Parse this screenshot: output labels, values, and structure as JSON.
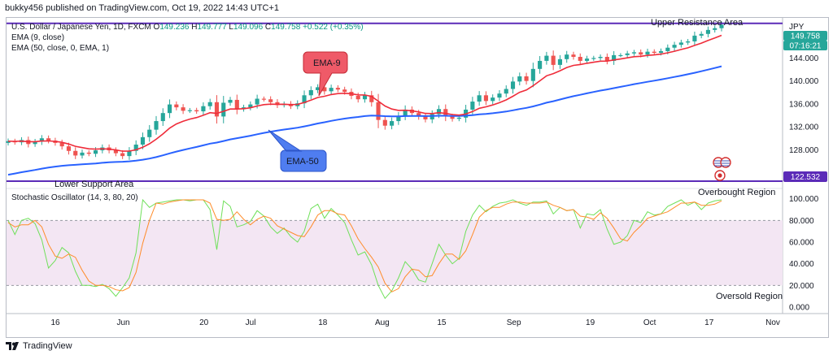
{
  "header": {
    "publisher_text": "bukky456 published on TradingView.com, Oct 19, 2022 14:43 UTC+1"
  },
  "footer": {
    "brand": "TradingView",
    "logo_icon": "tradingview-logo-icon"
  },
  "colors": {
    "up_candle": "#26a69a",
    "down_candle": "#ef5350",
    "ema9": "#ef2c3a",
    "ema50": "#2962ff",
    "level_line": "#5b2bb8",
    "stoch_k": "#6fe05a",
    "stoch_d": "#ff8c2a",
    "band_fill": "#f3e6f3",
    "ema9_callout_bg": "#ef5a68",
    "ema50_callout_bg": "#4f7df0",
    "axis_text": "#131722"
  },
  "chart_data": [
    {
      "type": "candlestick",
      "symbol_line": "U.S. Dollar / Japanese Yen, 1D, FXCM",
      "ohlc": {
        "o_label": "O",
        "o": "149.236",
        "h_label": "H",
        "h": "149.777",
        "l_label": "L",
        "l": "149.096",
        "c_label": "C",
        "c": "149.758",
        "change": "+0.522 (+0.35%)"
      },
      "indicators": [
        {
          "label": "EMA (9, close)",
          "color": "#ef2c3a"
        },
        {
          "label": "EMA (50, close, 0, EMA, 1)",
          "color": "#2962ff"
        }
      ],
      "currency_label": "JPY",
      "price_ticks": [
        "128.000",
        "132.000",
        "136.000",
        "140.000",
        "144.000"
      ],
      "price_tick_values": [
        128,
        132,
        136,
        140,
        144
      ],
      "ylim": [
        121.25,
        151.0
      ],
      "last_price_badge": "149.758",
      "countdown_badge": "07:16:21",
      "support_badge": "122.532",
      "resistance_level": 150.05,
      "support_level": 122.532,
      "annotations": {
        "upper_area": "Upper Resistance Area",
        "lower_area": "Lower Support Area",
        "ema9_callout": "EMA-9",
        "ema50_callout": "EMA-50"
      },
      "x_ticks": [
        "16",
        "Jun",
        "20",
        "Jul",
        "18",
        "Aug",
        "15",
        "Sep",
        "19",
        "Oct",
        "17",
        "Nov"
      ],
      "x_tick_dates": [
        "2022-05-16",
        "2022-06-01",
        "2022-06-20",
        "2022-07-01",
        "2022-07-18",
        "2022-08-01",
        "2022-08-15",
        "2022-09-01",
        "2022-09-19",
        "2022-10-03",
        "2022-10-17",
        "2022-11-01"
      ],
      "closes": [
        129.5,
        129.3,
        129.7,
        129.0,
        129.4,
        130.0,
        129.6,
        129.2,
        128.6,
        127.8,
        127.0,
        127.5,
        127.3,
        127.9,
        128.4,
        127.9,
        127.4,
        126.9,
        127.8,
        128.9,
        130.2,
        131.5,
        133.0,
        134.4,
        135.9,
        135.4,
        134.8,
        134.9,
        134.7,
        135.6,
        136.3,
        133.8,
        136.2,
        136.7,
        135.1,
        135.4,
        135.9,
        136.9,
        136.8,
        136.3,
        135.8,
        136.0,
        135.6,
        136.1,
        137.5,
        138.4,
        138.9,
        138.2,
        138.8,
        138.5,
        138.1,
        137.4,
        136.8,
        137.5,
        136.3,
        133.2,
        132.2,
        133.0,
        133.9,
        135.0,
        134.4,
        133.8,
        133.3,
        134.2,
        135.1,
        133.8,
        133.4,
        133.6,
        135.0,
        136.4,
        137.5,
        136.5,
        137.1,
        137.8,
        138.6,
        139.9,
        140.8,
        140.0,
        142.1,
        143.5,
        144.4,
        142.8,
        143.8,
        144.6,
        144.2,
        143.5,
        143.9,
        144.0,
        144.2,
        143.5,
        144.5,
        144.5,
        144.8,
        145.0,
        144.6,
        145.1,
        144.9,
        145.2,
        145.8,
        146.3,
        146.7,
        146.9,
        147.9,
        148.2,
        148.9,
        149.2,
        149.8
      ]
    },
    {
      "type": "line",
      "title": "Stochastic Oscillator (14, 3, 80, 20)",
      "ticks": [
        "0.000",
        "20.000",
        "40.000",
        "60.000",
        "80.000",
        "100.000"
      ],
      "tick_values": [
        0,
        20,
        40,
        60,
        80,
        100
      ],
      "ylim": [
        -6,
        108
      ],
      "upper_band": 80,
      "lower_band": 20,
      "annotations": {
        "overbought": "Overbought Region",
        "oversold": "Oversold Region"
      },
      "series": [
        {
          "name": "%K",
          "values": [
            80,
            67,
            80,
            82,
            77,
            62,
            36,
            43,
            55,
            50,
            33,
            20,
            20,
            19,
            21,
            17,
            10,
            18,
            27,
            50,
            99,
            92,
            96,
            97,
            98,
            99,
            99,
            98,
            99,
            99,
            90,
            53,
            98,
            93,
            74,
            76,
            79,
            89,
            84,
            74,
            68,
            73,
            65,
            60,
            70,
            91,
            95,
            82,
            91,
            85,
            78,
            62,
            48,
            51,
            39,
            20,
            8,
            15,
            27,
            42,
            35,
            25,
            23,
            40,
            58,
            48,
            40,
            45,
            70,
            85,
            94,
            88,
            93,
            96,
            97,
            99,
            96,
            94,
            97,
            97,
            98,
            86,
            92,
            89,
            90,
            73,
            86,
            85,
            90,
            72,
            58,
            60,
            66,
            80,
            78,
            88,
            85,
            86,
            93,
            96,
            99,
            94,
            97,
            90,
            96,
            98,
            99
          ]
        },
        {
          "name": "%D",
          "values": [
            78,
            74,
            76,
            76,
            80,
            74,
            58,
            47,
            45,
            49,
            46,
            34,
            24,
            20,
            20,
            19,
            16,
            15,
            18,
            32,
            59,
            80,
            96,
            95,
            97,
            98,
            99,
            99,
            99,
            99,
            96,
            81,
            80,
            81,
            88,
            81,
            76,
            81,
            84,
            82,
            75,
            72,
            69,
            66,
            65,
            74,
            85,
            89,
            89,
            86,
            85,
            75,
            63,
            54,
            46,
            37,
            22,
            14,
            17,
            28,
            35,
            34,
            28,
            29,
            40,
            49,
            49,
            44,
            52,
            67,
            83,
            89,
            92,
            92,
            95,
            97,
            97,
            96,
            96,
            96,
            97,
            94,
            92,
            89,
            90,
            84,
            83,
            81,
            87,
            82,
            73,
            63,
            61,
            69,
            75,
            82,
            84,
            86,
            88,
            92,
            96,
            96,
            97,
            94,
            94,
            95,
            98
          ]
        }
      ]
    }
  ]
}
